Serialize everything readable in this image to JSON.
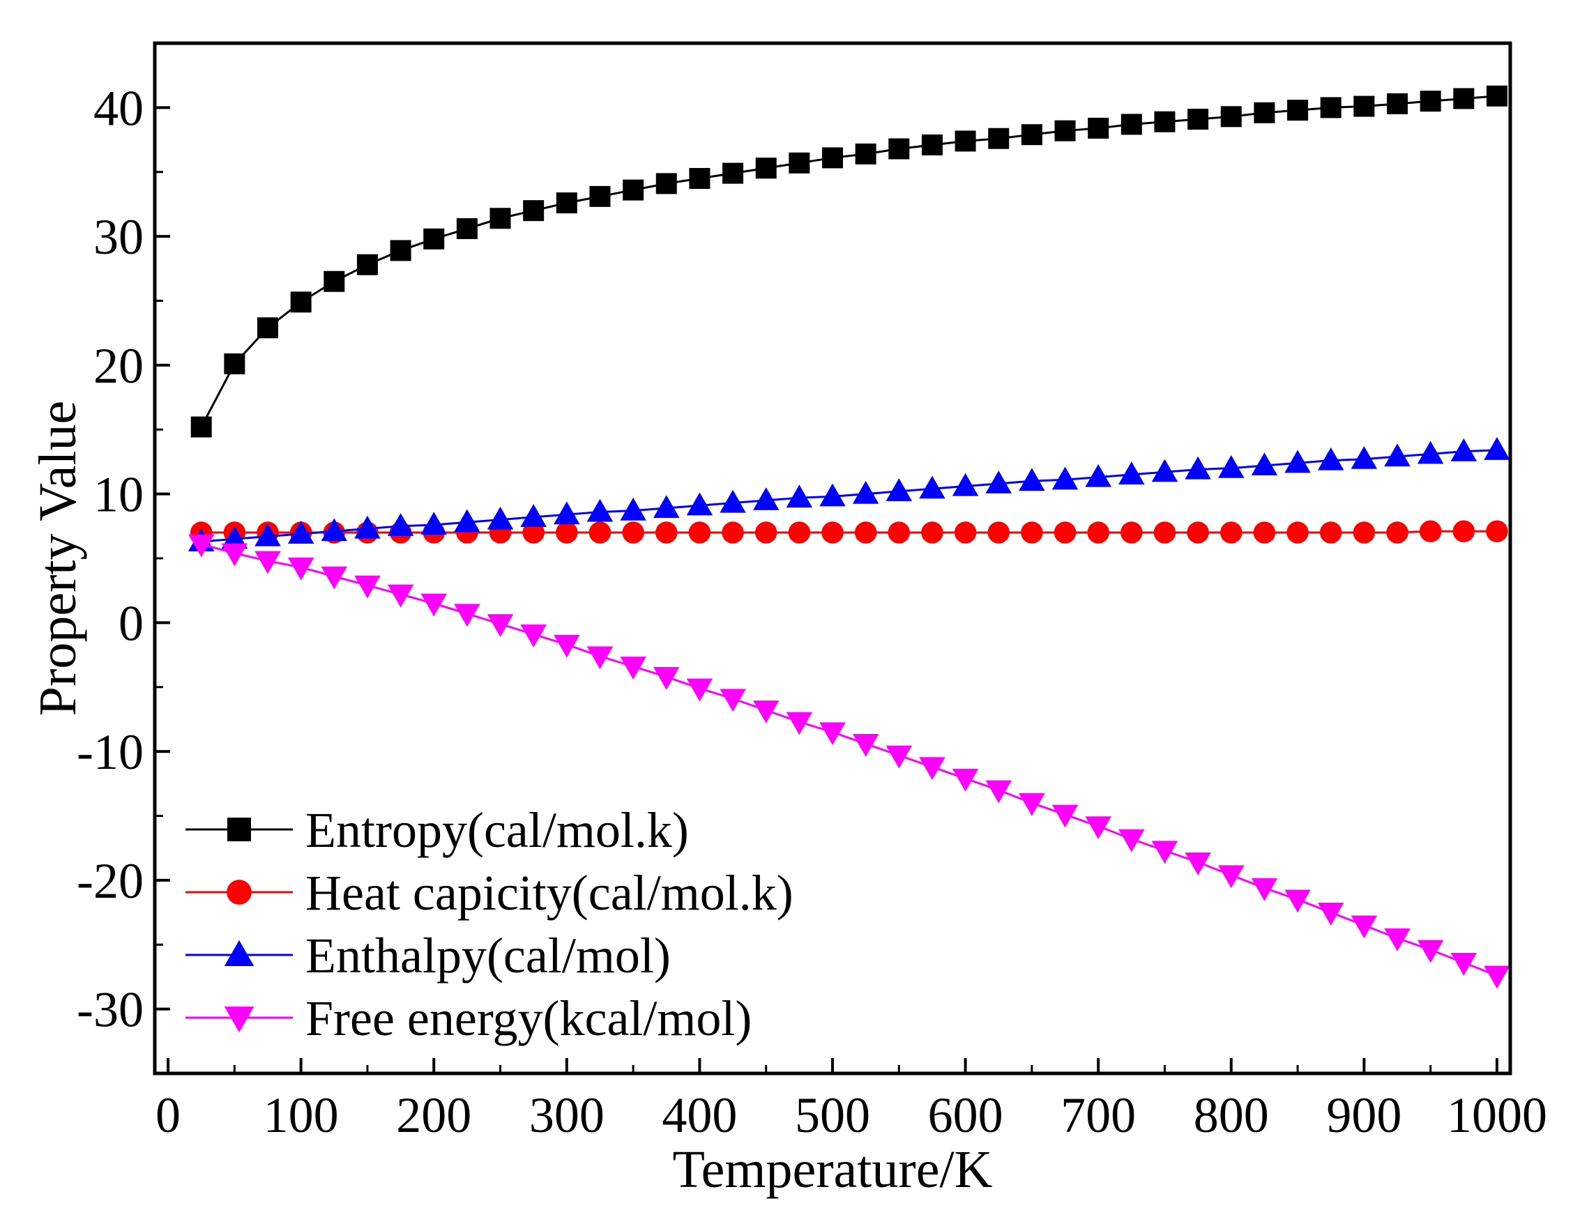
{
  "chart_data": {
    "type": "line",
    "xlabel": "Temperature/K",
    "ylabel": "Property Value",
    "xlim": [
      -10,
      1010
    ],
    "ylim": [
      -35,
      45
    ],
    "xticks": [
      0,
      100,
      200,
      300,
      400,
      500,
      600,
      700,
      800,
      900,
      1000
    ],
    "yticks": [
      -30,
      -20,
      -10,
      0,
      10,
      20,
      30,
      40
    ],
    "xtick_labels": [
      "0",
      "100",
      "200",
      "300",
      "400",
      "500",
      "600",
      "700",
      "800",
      "900",
      "1000"
    ],
    "ytick_labels": [
      "-30",
      "-20",
      "-10",
      "0",
      "10",
      "20",
      "30",
      "40"
    ],
    "legend_position": "bottom-left",
    "x": [
      25,
      50,
      75,
      100,
      125,
      150,
      175,
      200,
      225,
      250,
      275,
      300,
      325,
      350,
      375,
      400,
      425,
      450,
      475,
      500,
      525,
      550,
      575,
      600,
      625,
      650,
      675,
      700,
      725,
      750,
      775,
      800,
      825,
      850,
      875,
      900,
      925,
      950,
      975,
      1000
    ],
    "series": [
      {
        "name": "Entropy(cal/mol.k)",
        "color": "#000000",
        "marker": "square",
        "values": [
          15.2,
          20.1,
          22.9,
          24.9,
          26.5,
          27.8,
          28.9,
          29.8,
          30.6,
          31.4,
          32.0,
          32.6,
          33.1,
          33.6,
          34.1,
          34.5,
          34.9,
          35.3,
          35.7,
          36.1,
          36.4,
          36.8,
          37.1,
          37.4,
          37.6,
          37.9,
          38.2,
          38.4,
          38.7,
          38.9,
          39.1,
          39.3,
          39.6,
          39.8,
          40.0,
          40.1,
          40.3,
          40.5,
          40.7,
          40.9
        ]
      },
      {
        "name": "Heat capicity(cal/mol.k)",
        "color": "#ff0000",
        "marker": "circle",
        "values": [
          7.0,
          7.0,
          7.0,
          7.0,
          7.0,
          7.0,
          7.0,
          7.0,
          7.0,
          7.0,
          7.0,
          7.0,
          7.0,
          7.0,
          7.0,
          7.0,
          7.0,
          7.0,
          7.0,
          7.0,
          7.0,
          7.0,
          7.0,
          7.0,
          7.0,
          7.0,
          7.0,
          7.0,
          7.0,
          7.0,
          7.0,
          7.0,
          7.0,
          7.0,
          7.0,
          7.0,
          7.0,
          7.1,
          7.1,
          7.1
        ]
      },
      {
        "name": "Enthalpy(cal/mol)",
        "color": "#0000ff",
        "marker": "triangle-up",
        "values": [
          6.3,
          6.5,
          6.7,
          6.9,
          7.1,
          7.3,
          7.5,
          7.6,
          7.8,
          8.0,
          8.2,
          8.4,
          8.6,
          8.7,
          8.9,
          9.1,
          9.3,
          9.5,
          9.7,
          9.8,
          10.0,
          10.2,
          10.4,
          10.6,
          10.8,
          11.0,
          11.1,
          11.3,
          11.5,
          11.7,
          11.9,
          12.0,
          12.2,
          12.4,
          12.6,
          12.7,
          12.9,
          13.1,
          13.3,
          13.4
        ]
      },
      {
        "name": "Free energy(kcal/mol)",
        "color": "#ff00ff",
        "marker": "triangle-down",
        "values": [
          6.1,
          5.4,
          4.8,
          4.3,
          3.6,
          2.9,
          2.2,
          1.5,
          0.7,
          -0.1,
          -0.9,
          -1.7,
          -2.6,
          -3.4,
          -4.2,
          -5.1,
          -5.9,
          -6.8,
          -7.7,
          -8.5,
          -9.4,
          -10.3,
          -11.2,
          -12.1,
          -13.0,
          -14.0,
          -14.9,
          -15.8,
          -16.8,
          -17.7,
          -18.6,
          -19.6,
          -20.6,
          -21.5,
          -22.5,
          -23.5,
          -24.5,
          -25.4,
          -26.4,
          -27.4
        ]
      }
    ]
  }
}
